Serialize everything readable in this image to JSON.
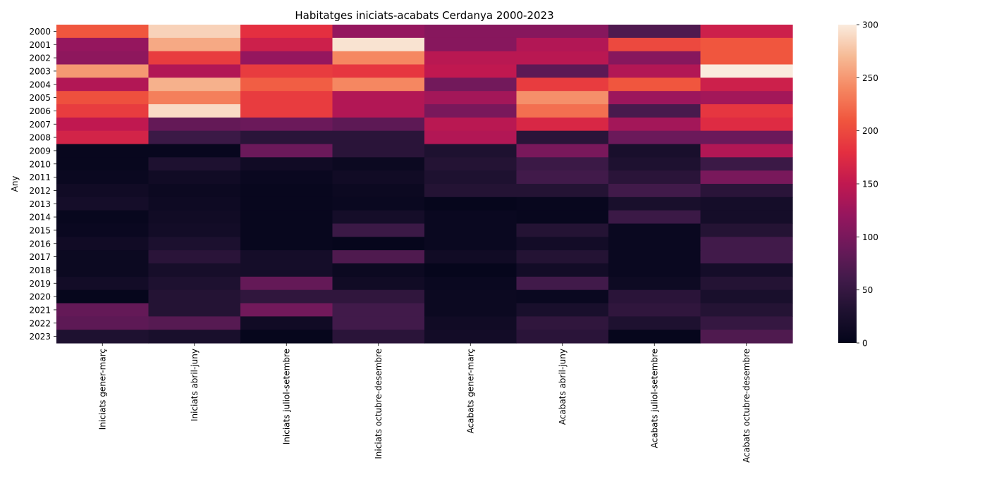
{
  "chart_data": {
    "type": "heatmap",
    "title": "Habitatges iniciats-acabats Cerdanya 2000-2023",
    "xlabel": "",
    "ylabel": "Any",
    "columns": [
      "Iniciats gener-març",
      "Iniciats abril-juny",
      "Iniciats juliol-setembre",
      "Iniciats octubre-desembre",
      "Acabats gener-març",
      "Acabats abril-juny",
      "Acabats juliol-setembre",
      "Acabats octubre-desembre"
    ],
    "rows": [
      "2000",
      "2001",
      "2002",
      "2003",
      "2004",
      "2005",
      "2006",
      "2007",
      "2008",
      "2009",
      "2010",
      "2011",
      "2012",
      "2013",
      "2014",
      "2015",
      "2016",
      "2017",
      "2018",
      "2019",
      "2020",
      "2021",
      "2022",
      "2023"
    ],
    "values": [
      [
        210,
        285,
        180,
        120,
        110,
        110,
        70,
        160
      ],
      [
        120,
        260,
        160,
        295,
        110,
        140,
        200,
        210
      ],
      [
        115,
        190,
        120,
        240,
        145,
        145,
        110,
        210
      ],
      [
        250,
        140,
        190,
        185,
        150,
        80,
        140,
        300
      ],
      [
        140,
        265,
        215,
        240,
        95,
        190,
        210,
        160
      ],
      [
        205,
        235,
        190,
        140,
        130,
        245,
        125,
        130
      ],
      [
        190,
        290,
        190,
        140,
        100,
        225,
        65,
        185
      ],
      [
        150,
        85,
        90,
        80,
        145,
        170,
        130,
        175
      ],
      [
        165,
        55,
        40,
        40,
        140,
        40,
        90,
        90
      ],
      [
        5,
        5,
        90,
        40,
        30,
        100,
        25,
        140
      ],
      [
        5,
        30,
        15,
        10,
        35,
        55,
        30,
        55
      ],
      [
        8,
        15,
        8,
        15,
        30,
        60,
        40,
        100
      ],
      [
        15,
        10,
        5,
        10,
        35,
        35,
        60,
        40
      ],
      [
        20,
        12,
        5,
        8,
        3,
        5,
        25,
        20
      ],
      [
        5,
        15,
        5,
        20,
        8,
        5,
        55,
        20
      ],
      [
        8,
        18,
        5,
        55,
        8,
        35,
        8,
        35
      ],
      [
        15,
        28,
        5,
        3,
        8,
        18,
        8,
        60
      ],
      [
        10,
        40,
        20,
        70,
        15,
        35,
        8,
        60
      ],
      [
        10,
        22,
        20,
        10,
        3,
        18,
        8,
        20
      ],
      [
        18,
        30,
        85,
        15,
        8,
        60,
        12,
        35
      ],
      [
        3,
        35,
        45,
        45,
        10,
        8,
        40,
        25
      ],
      [
        85,
        35,
        95,
        60,
        10,
        25,
        45,
        35
      ],
      [
        80,
        75,
        15,
        60,
        15,
        45,
        30,
        50
      ],
      [
        30,
        25,
        3,
        40,
        18,
        40,
        3,
        70
      ]
    ],
    "colorbar": {
      "range": [
        0,
        300
      ],
      "ticks": [
        0,
        50,
        100,
        150,
        200,
        250,
        300
      ]
    }
  }
}
